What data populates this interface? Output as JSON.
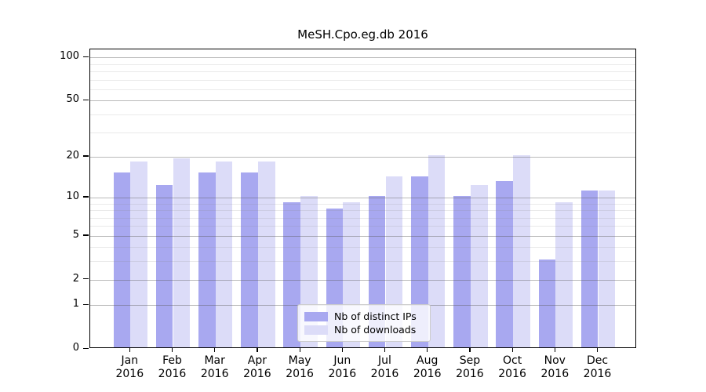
{
  "title": "MeSH.Cpo.eg.db 2016",
  "colors": {
    "ips_bar": "#a8a8f0",
    "downloads_bar": "#dcdcf8",
    "axis": "#000000",
    "grid_major": "#b5b5b5",
    "grid_minor": "#e5e5e5",
    "legend_border": "#cccccc"
  },
  "legend": {
    "items": [
      {
        "label": "Nb of distinct IPs"
      },
      {
        "label": "Nb of downloads"
      }
    ]
  },
  "y_axis": {
    "major_ticks": [
      0,
      1,
      2,
      5,
      10,
      20,
      50,
      100
    ],
    "minor_ticks": [
      3,
      4,
      6,
      7,
      8,
      9,
      30,
      40,
      60,
      70,
      80,
      90
    ]
  },
  "chart_data": {
    "type": "bar",
    "title": "MeSH.Cpo.eg.db 2016",
    "categories": [
      "Jan 2016",
      "Feb 2016",
      "Mar 2016",
      "Apr 2016",
      "May 2016",
      "Jun 2016",
      "Jul 2016",
      "Aug 2016",
      "Sep 2016",
      "Oct 2016",
      "Nov 2016",
      "Dec 2016"
    ],
    "series": [
      {
        "name": "Nb of distinct IPs",
        "color": "#a8a8f0",
        "values": [
          15,
          12,
          15,
          15,
          9,
          8,
          10,
          14,
          10,
          13,
          3,
          11
        ]
      },
      {
        "name": "Nb of downloads",
        "color": "#dcdcf8",
        "values": [
          18,
          19,
          18,
          18,
          10,
          9,
          14,
          20,
          12,
          20,
          9,
          11
        ]
      }
    ],
    "xlabel": "",
    "ylabel": "",
    "y_scale": "log10(1+value)",
    "y_tick_values": [
      0,
      1,
      2,
      5,
      10,
      20,
      50,
      100
    ],
    "ylim": [
      0,
      113
    ],
    "grid": "horizontal, major and minor",
    "legend_position": "inside lower center"
  }
}
